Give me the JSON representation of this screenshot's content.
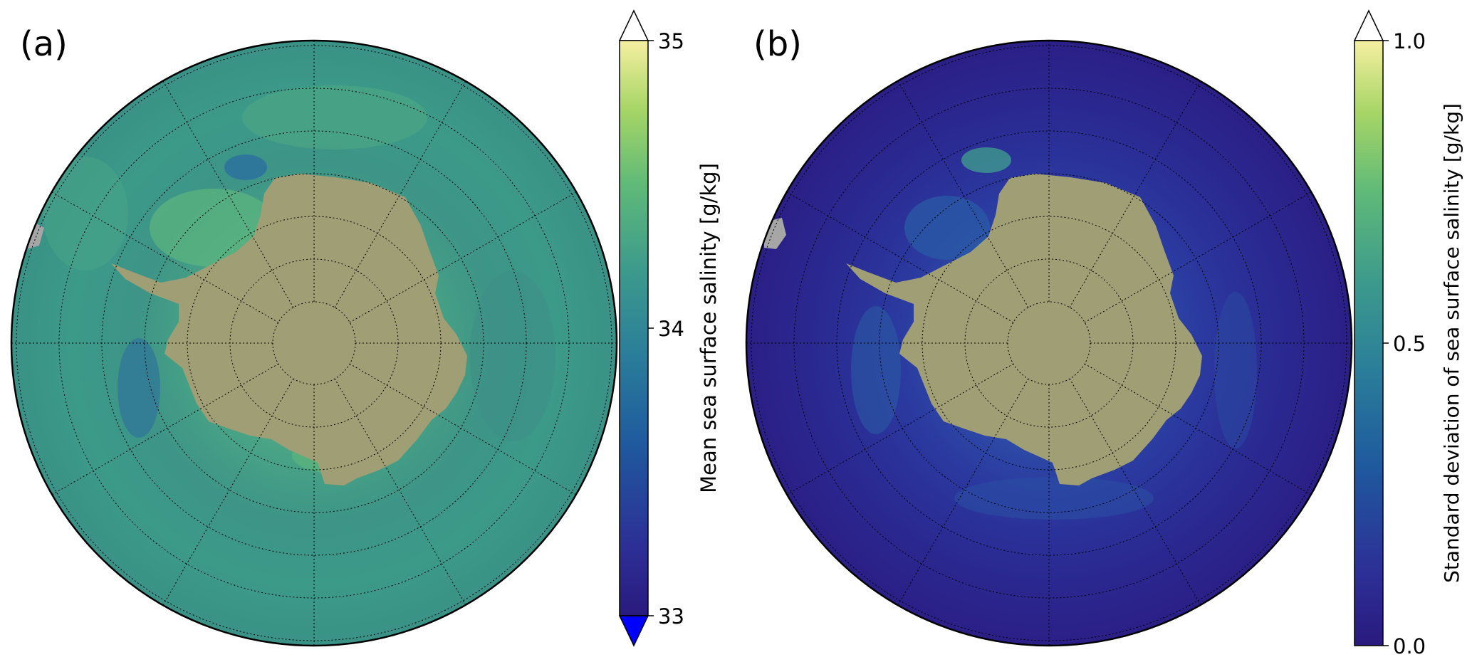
{
  "figure": {
    "panels": [
      {
        "label": "(a)",
        "colorbar": {
          "label": "Mean sea surface salinity [g/kg]",
          "ticks": [
            "33",
            "34",
            "35"
          ],
          "tick_values": [
            33,
            34,
            35
          ],
          "range": [
            33,
            35
          ],
          "extend": "both",
          "under_color": "#0000ff",
          "over_color": "#ffffff"
        }
      },
      {
        "label": "(b)",
        "colorbar": {
          "label": "Standard deviation of sea surface salinity [g/kg]",
          "ticks": [
            "0.0",
            "0.5",
            "1.0"
          ],
          "tick_values": [
            0.0,
            0.5,
            1.0
          ],
          "range": [
            0.0,
            1.0
          ],
          "extend": "max",
          "over_color": "#ffffff"
        }
      }
    ],
    "map": {
      "projection": "south-polar-stereographic",
      "graticule": "dotted",
      "land_color": "#a09e74",
      "ocean_color_a": "#3e9a8a",
      "ocean_color_b": "#2b1e8c"
    },
    "colormap": [
      "#2a1a7e",
      "#2c2f96",
      "#1f5a9e",
      "#2a7d9a",
      "#3c9a8c",
      "#5fba78",
      "#a6d566",
      "#f5efa0"
    ]
  }
}
